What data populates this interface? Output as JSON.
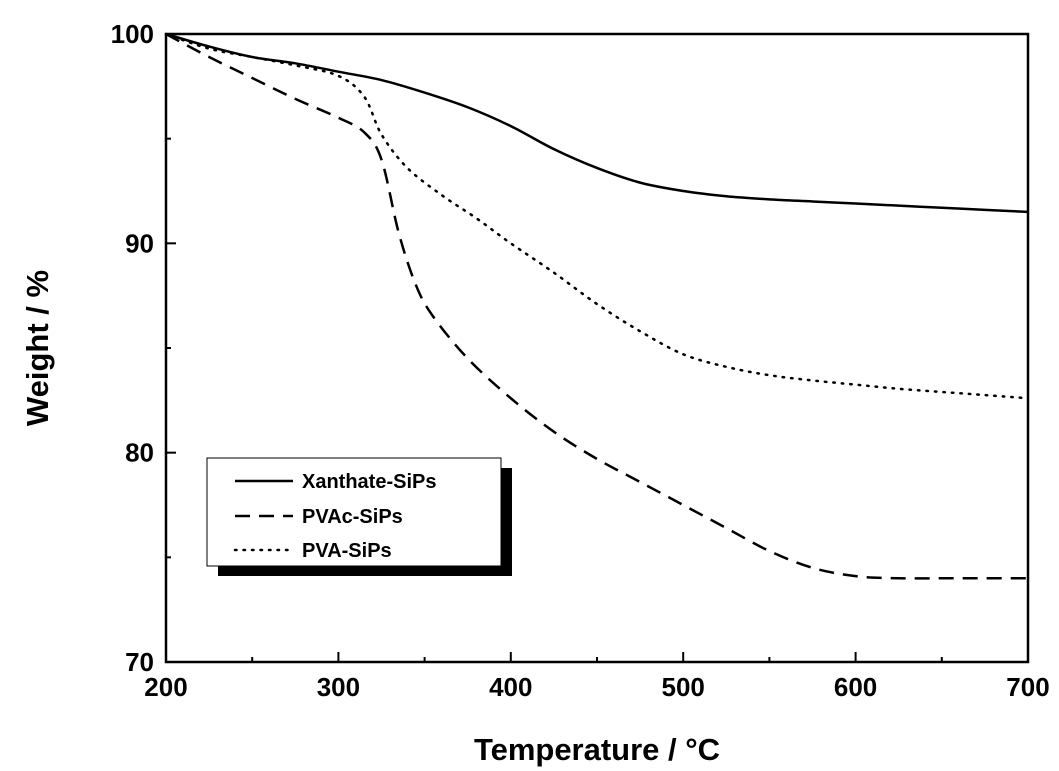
{
  "chart_data": {
    "type": "line",
    "title": "",
    "xlabel": "Temperature / °C",
    "ylabel": "Weight / %",
    "xlim": [
      200,
      700
    ],
    "ylim": [
      70,
      100
    ],
    "xticks": [
      "200",
      "300",
      "400",
      "500",
      "600",
      "700"
    ],
    "yticks": [
      "70",
      "80",
      "90",
      "100"
    ],
    "grid": false,
    "legend_position": "lower-left",
    "series": [
      {
        "name": "Xanthate-SiPs",
        "style": "solid",
        "color": "#000000",
        "x": [
          200,
          225,
          250,
          275,
          300,
          325,
          350,
          375,
          400,
          425,
          450,
          475,
          500,
          525,
          550,
          575,
          600,
          625,
          650,
          675,
          700
        ],
        "y": [
          100,
          99.4,
          98.9,
          98.6,
          98.2,
          97.8,
          97.2,
          96.5,
          95.6,
          94.5,
          93.6,
          92.9,
          92.5,
          92.25,
          92.1,
          92.0,
          91.9,
          91.8,
          91.7,
          91.6,
          91.5
        ]
      },
      {
        "name": "PVAc-SiPs",
        "style": "dashed",
        "color": "#000000",
        "x": [
          200,
          225,
          250,
          275,
          300,
          315,
          325,
          335,
          345,
          355,
          375,
          400,
          425,
          450,
          475,
          500,
          525,
          550,
          575,
          600,
          625,
          650,
          675,
          700
        ],
        "y": [
          100,
          98.9,
          97.9,
          96.9,
          96.0,
          95.3,
          94.0,
          90.5,
          88.0,
          86.5,
          84.5,
          82.6,
          81.0,
          79.7,
          78.6,
          77.5,
          76.4,
          75.3,
          74.5,
          74.1,
          74.0,
          74.0,
          74.0,
          74.0
        ]
      },
      {
        "name": "PVA-SiPs",
        "style": "dotted",
        "color": "#000000",
        "x": [
          200,
          225,
          250,
          275,
          300,
          315,
          325,
          340,
          360,
          380,
          400,
          425,
          450,
          475,
          500,
          525,
          550,
          575,
          600,
          625,
          650,
          675,
          700
        ],
        "y": [
          100,
          99.3,
          98.9,
          98.5,
          98.0,
          97.0,
          95.2,
          93.6,
          92.3,
          91.2,
          90.0,
          88.6,
          87.1,
          85.8,
          84.7,
          84.1,
          83.7,
          83.45,
          83.25,
          83.05,
          82.9,
          82.75,
          82.6
        ]
      }
    ]
  }
}
